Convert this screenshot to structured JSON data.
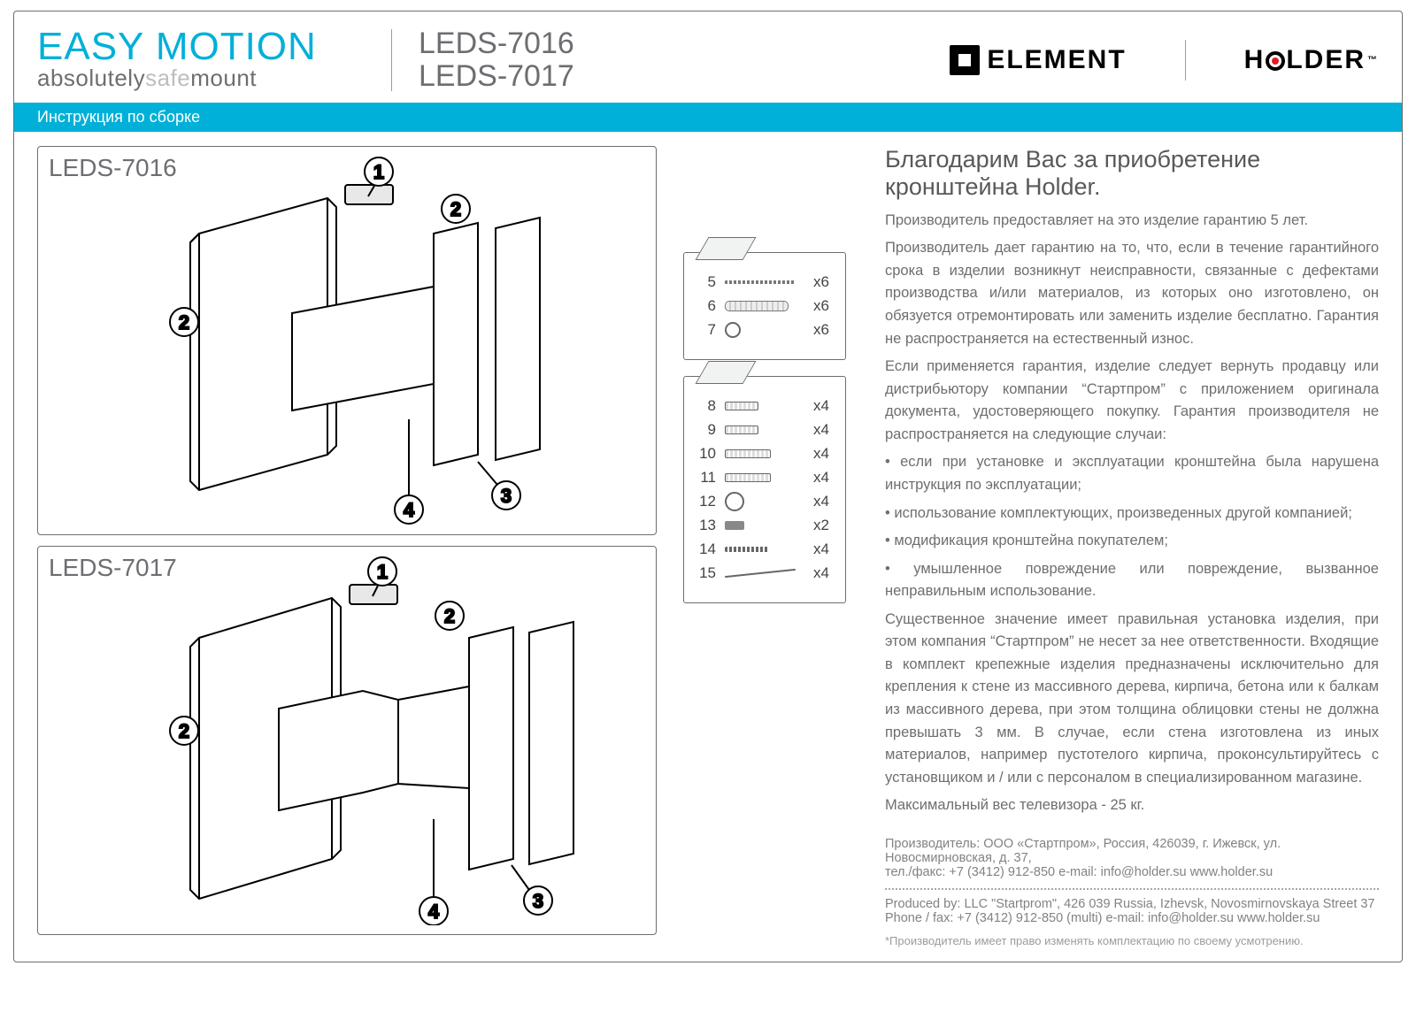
{
  "colors": {
    "accent": "#00b0d8",
    "text": "#58595b",
    "muted": "#6d6e71",
    "light": "#bcbec0",
    "red": "#e11b22"
  },
  "header": {
    "title_top": "EASY MOTION",
    "title_bottom_a": "absolutely",
    "title_bottom_b": "safe",
    "title_bottom_c": "mount",
    "model_a": "LEDS-7016",
    "model_b": "LEDS-7017",
    "logo_a": "ELEMENT",
    "logo_b_left": "H",
    "logo_b_right": "LDER",
    "tm": "™"
  },
  "subheader": "Инструкция по сборке",
  "diagrams": [
    {
      "title": "LEDS-7016",
      "callouts": [
        "1",
        "2",
        "2",
        "3",
        "4"
      ]
    },
    {
      "title": "LEDS-7017",
      "callouts": [
        "1",
        "2",
        "2",
        "3",
        "4"
      ]
    }
  ],
  "parts_a": [
    {
      "n": "5",
      "icon": "screw-long",
      "qty": "x6"
    },
    {
      "n": "6",
      "icon": "plug",
      "qty": "x6"
    },
    {
      "n": "7",
      "icon": "washer",
      "qty": "x6"
    }
  ],
  "parts_b": [
    {
      "n": "8",
      "icon": "bolt-s",
      "qty": "x4"
    },
    {
      "n": "9",
      "icon": "bolt-s",
      "qty": "x4"
    },
    {
      "n": "10",
      "icon": "bolt-m",
      "qty": "x4"
    },
    {
      "n": "11",
      "icon": "bolt-m",
      "qty": "x4"
    },
    {
      "n": "12",
      "icon": "ring",
      "qty": "x4"
    },
    {
      "n": "13",
      "icon": "stud",
      "qty": "x2"
    },
    {
      "n": "14",
      "icon": "tap",
      "qty": "x4"
    },
    {
      "n": "15",
      "icon": "tie",
      "qty": "x4"
    }
  ],
  "text": {
    "h2": "Благодарим Вас за приобретение кронштейна Holder.",
    "p1": "Производитель предоставляет на это изделие гарантию 5 лет.",
    "p2": "Производитель дает гарантию на то, что, если в течение гарантийного срока в изделии возникнут неисправности, связанные с дефектами производства и/или материалов, из которых оно изготовлено, он обязуется отремонтировать или заменить изделие бесплатно. Гарантия не распространяется на естественный износ.",
    "p3": "Если применяется гарантия, изделие следует вернуть продавцу или дистрибьютору компании “Стартпром” с приложением оригинала документа, удостоверяющего покупку. Гарантия производителя не распространяется на следующие случаи:",
    "b1": "если при установке и эксплуатации кронштейна была нарушена инструкция по эксплуатации;",
    "b2": "использование комплектующих, произведенных другой компанией;",
    "b3": "модификация кронштейна покупателем;",
    "b4": "умышленное повреждение или повреждение, вызванное неправильным использование.",
    "p4": "Существенное значение имеет правильная установка изделия, при этом компания “Стартпром” не несет за нее ответственности. Входящие в комплект крепежные изделия предназначены исключительно для крепления к стене из массивного дерева, кирпича, бетона или к балкам из массивного дерева, при этом толщина облицовки стены не должна превышать 3 мм. В случае, если стена изготовлена из иных материалов, например пустотелого кирпича, проконсультируйтесь с установщиком и / или с персоналом в специализированном магазине.",
    "p5": "Максимальный вес телевизора - 25 кг."
  },
  "footer": {
    "ru1": "Производитель: ООО «Стартпром», Россия, 426039, г. Ижевск, ул. Новосмирновская, д. 37,",
    "ru2": "тел./факс: +7 (3412) 912-850    e-mail: info@holder.su    www.holder.su",
    "en1": "Produced by: LLC \"Startprom\", 426 039 Russia, Izhevsk, Novosmirnovskaya Street 37",
    "en2": "Phone / fax: +7 (3412) 912-850 (multi)    e-mail: info@holder.su    www.holder.su",
    "note": "*Производитель имеет право изменять комплектацию по своему усмотрению."
  }
}
